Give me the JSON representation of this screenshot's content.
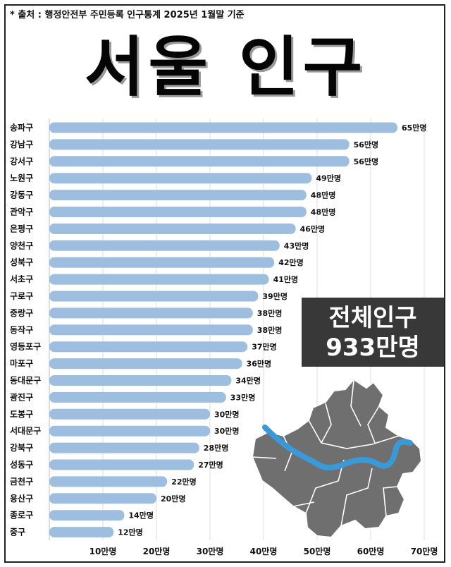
{
  "source": "* 출처 : 행정안전부 주민등록 인구통계 2025년 1월말 기준",
  "title": "서울 인구",
  "total": {
    "label": "전체인구",
    "value": "933만명"
  },
  "chart_data": {
    "type": "bar",
    "orientation": "horizontal",
    "title": "서울 인구",
    "unit": "만명",
    "xlim": [
      0,
      70
    ],
    "xticks": [
      "10만명",
      "20만명",
      "30만명",
      "40만명",
      "50만명",
      "60만명",
      "70만명"
    ],
    "grid": true,
    "categories": [
      "송파구",
      "강남구",
      "강서구",
      "노원구",
      "강동구",
      "관악구",
      "은평구",
      "양천구",
      "성북구",
      "서초구",
      "구로구",
      "중랑구",
      "동작구",
      "영등포구",
      "마포구",
      "동대문구",
      "광진구",
      "도봉구",
      "서대문구",
      "강북구",
      "성동구",
      "금천구",
      "용산구",
      "종로구",
      "중구"
    ],
    "values": [
      65,
      56,
      56,
      49,
      48,
      48,
      46,
      43,
      42,
      41,
      39,
      38,
      38,
      37,
      36,
      34,
      33,
      30,
      30,
      28,
      27,
      22,
      20,
      14,
      12
    ],
    "value_labels": [
      "65만명",
      "56만명",
      "56만명",
      "49만명",
      "48만명",
      "48만명",
      "46만명",
      "43만명",
      "42만명",
      "41만명",
      "39만명",
      "38만명",
      "38만명",
      "37만명",
      "36만명",
      "34만명",
      "33만명",
      "30만명",
      "30만명",
      "28만명",
      "27만명",
      "22만명",
      "20만명",
      "14만명",
      "12만명"
    ],
    "bar_color": "#9ebee0"
  },
  "colors": {
    "map_fill": "#6f6f6f",
    "river": "#3a9ad9",
    "box_bg": "#383838"
  }
}
